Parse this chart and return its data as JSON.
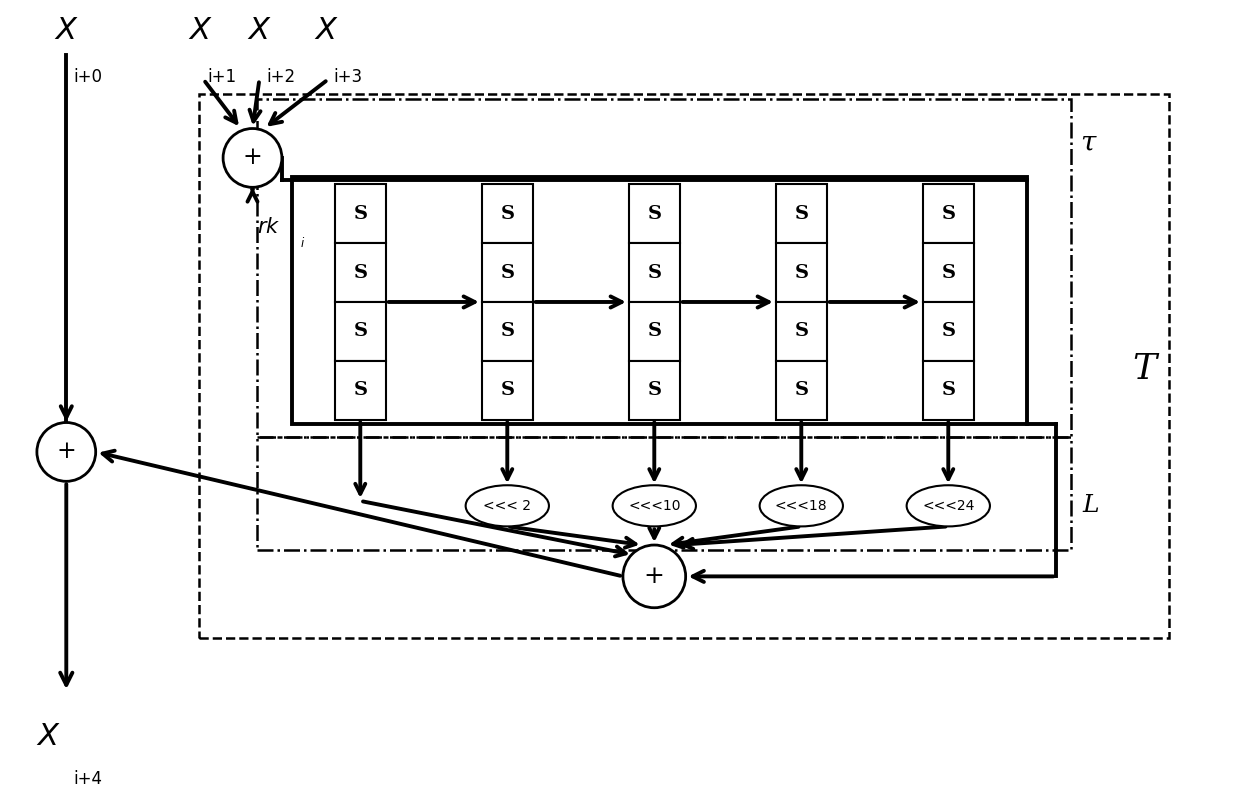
{
  "bg_color": "#ffffff",
  "fig_width": 12.39,
  "fig_height": 7.98,
  "labels": {
    "tau_label": "τ",
    "T_label": "T",
    "L_label": "L",
    "shift2": "<<< 2",
    "shift10": "<<<10",
    "shift18": "<<<18",
    "shift24": "<<<24"
  }
}
